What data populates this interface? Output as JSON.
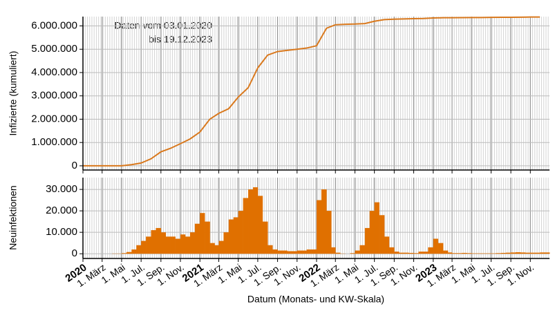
{
  "chart_data": [
    {
      "type": "line",
      "ylabel": "Infizierte (kumuliert)",
      "annotation": [
        "Daten vom 03.01.2020",
        "bis 19.12.2023"
      ],
      "xlim": [
        "2020-01-01",
        "2023-12-31"
      ],
      "ylim": [
        -180000,
        6400000
      ],
      "yticks": [
        0,
        {
          "value": 1000000,
          "label": "1.000.000"
        },
        {
          "value": 2000000,
          "label": "2.000.000"
        },
        {
          "value": 3000000,
          "label": "3.000.000"
        },
        {
          "value": 4000000,
          "label": "4.000.000"
        },
        {
          "value": 5000000,
          "label": "5.000.000"
        },
        {
          "value": 6000000,
          "label": "6.000.000"
        }
      ],
      "grid": true,
      "x": [
        "2020-01-01",
        "2020-02-01",
        "2020-03-01",
        "2020-04-01",
        "2020-05-01",
        "2020-06-01",
        "2020-07-01",
        "2020-08-01",
        "2020-09-01",
        "2020-10-01",
        "2020-11-01",
        "2020-12-01",
        "2021-01-01",
        "2021-02-01",
        "2021-03-01",
        "2021-04-01",
        "2021-05-01",
        "2021-06-01",
        "2021-07-01",
        "2021-08-01",
        "2021-09-01",
        "2021-10-01",
        "2021-11-01",
        "2021-12-01",
        "2022-01-01",
        "2022-02-01",
        "2022-03-01",
        "2022-04-01",
        "2022-05-01",
        "2022-06-01",
        "2022-07-01",
        "2022-08-01",
        "2022-09-01",
        "2022-10-01",
        "2022-11-01",
        "2022-12-01",
        "2023-01-01",
        "2023-02-01",
        "2023-03-01",
        "2023-04-01",
        "2023-05-01",
        "2023-06-01",
        "2023-07-01",
        "2023-08-01",
        "2023-09-01",
        "2023-10-01",
        "2023-11-01",
        "2023-12-01"
      ],
      "series": [
        {
          "name": "Infizierte (kumuliert)",
          "color": "#d9781c",
          "values": [
            0,
            0,
            0,
            0,
            0,
            50000,
            120000,
            300000,
            600000,
            750000,
            950000,
            1150000,
            1450000,
            2000000,
            2250000,
            2450000,
            2950000,
            3350000,
            4200000,
            4750000,
            4900000,
            4950000,
            5000000,
            5050000,
            5150000,
            5900000,
            6050000,
            6070000,
            6080000,
            6100000,
            6200000,
            6270000,
            6290000,
            6300000,
            6310000,
            6320000,
            6340000,
            6350000,
            6350000,
            6355000,
            6360000,
            6360000,
            6365000,
            6370000,
            6370000,
            6375000,
            6380000,
            6380000
          ]
        }
      ]
    },
    {
      "type": "bar",
      "ylabel": "Neuinfektionen",
      "xlabel": "Datum (Monats- und KW-Skala)",
      "xlim": [
        "2020-01-01",
        "2023-12-31"
      ],
      "ylim": [
        -2200,
        35500
      ],
      "yticks": [
        0,
        {
          "value": 10000,
          "label": "10.000"
        },
        {
          "value": 20000,
          "label": "20.000"
        },
        {
          "value": 30000,
          "label": "30.000"
        }
      ],
      "xticks": [
        {
          "value": "2020-01-01",
          "label": "2020"
        },
        {
          "value": "2020-03-01",
          "label": "1. März"
        },
        {
          "value": "2020-05-01",
          "label": "1. Mai"
        },
        {
          "value": "2020-07-01",
          "label": "1. Jul."
        },
        {
          "value": "2020-09-01",
          "label": "1. Sep."
        },
        {
          "value": "2020-11-01",
          "label": "1. Nov."
        },
        {
          "value": "2021-01-01",
          "label": "2021"
        },
        {
          "value": "2021-03-01",
          "label": "1. März"
        },
        {
          "value": "2021-05-01",
          "label": "1. Mai"
        },
        {
          "value": "2021-07-01",
          "label": "1. Jul."
        },
        {
          "value": "2021-09-01",
          "label": "1. Sep."
        },
        {
          "value": "2021-11-01",
          "label": "1. Nov."
        },
        {
          "value": "2022-01-01",
          "label": "2022"
        },
        {
          "value": "2022-03-01",
          "label": "1. März"
        },
        {
          "value": "2022-05-01",
          "label": "1. Mai"
        },
        {
          "value": "2022-07-01",
          "label": "1. Jul."
        },
        {
          "value": "2022-09-01",
          "label": "1. Sep."
        },
        {
          "value": "2022-11-01",
          "label": "1. Nov."
        },
        {
          "value": "2023-01-01",
          "label": "2023"
        },
        {
          "value": "2023-03-01",
          "label": "1. März"
        },
        {
          "value": "2023-05-01",
          "label": "1. Mai"
        },
        {
          "value": "2023-07-01",
          "label": "1. Jul."
        },
        {
          "value": "2023-09-01",
          "label": "1. Sep."
        },
        {
          "value": "2023-11-01",
          "label": "1. Nov."
        }
      ],
      "grid": true,
      "color": "#e07000",
      "x": [
        "2020-01-01",
        "2020-01-16",
        "2020-02-01",
        "2020-02-16",
        "2020-03-01",
        "2020-03-16",
        "2020-04-01",
        "2020-04-16",
        "2020-05-01",
        "2020-05-16",
        "2020-06-01",
        "2020-06-16",
        "2020-07-01",
        "2020-07-16",
        "2020-08-01",
        "2020-08-16",
        "2020-09-01",
        "2020-09-16",
        "2020-10-01",
        "2020-10-16",
        "2020-11-01",
        "2020-11-16",
        "2020-12-01",
        "2020-12-16",
        "2021-01-01",
        "2021-01-16",
        "2021-02-01",
        "2021-02-16",
        "2021-03-01",
        "2021-03-16",
        "2021-04-01",
        "2021-04-16",
        "2021-05-01",
        "2021-05-16",
        "2021-06-01",
        "2021-06-16",
        "2021-07-01",
        "2021-07-16",
        "2021-08-01",
        "2021-08-16",
        "2021-09-01",
        "2021-09-16",
        "2021-10-01",
        "2021-10-16",
        "2021-11-01",
        "2021-11-16",
        "2021-12-01",
        "2021-12-16",
        "2022-01-01",
        "2022-01-16",
        "2022-02-01",
        "2022-02-16",
        "2022-03-01",
        "2022-03-16",
        "2022-04-01",
        "2022-04-16",
        "2022-05-01",
        "2022-05-16",
        "2022-06-01",
        "2022-06-16",
        "2022-07-01",
        "2022-07-16",
        "2022-08-01",
        "2022-08-16",
        "2022-09-01",
        "2022-09-16",
        "2022-10-01",
        "2022-10-16",
        "2022-11-01",
        "2022-11-16",
        "2022-12-01",
        "2022-12-16",
        "2023-01-01",
        "2023-01-16",
        "2023-02-01",
        "2023-02-16",
        "2023-03-01",
        "2023-03-16",
        "2023-04-01",
        "2023-04-16",
        "2023-05-01",
        "2023-05-16",
        "2023-06-01",
        "2023-06-16",
        "2023-07-01",
        "2023-07-16",
        "2023-08-01",
        "2023-08-16",
        "2023-09-01",
        "2023-09-16",
        "2023-10-01",
        "2023-10-16",
        "2023-11-01",
        "2023-11-16",
        "2023-12-01",
        "2023-12-16"
      ],
      "values": [
        0,
        0,
        0,
        0,
        0,
        0,
        100,
        100,
        300,
        800,
        2000,
        4000,
        6000,
        8000,
        11000,
        12000,
        10000,
        8000,
        8000,
        7000,
        9000,
        8000,
        10000,
        14000,
        19000,
        15000,
        5000,
        4000,
        6000,
        10000,
        16000,
        17000,
        20000,
        26000,
        30000,
        31000,
        27000,
        15000,
        4000,
        2000,
        1500,
        1500,
        1200,
        1200,
        1500,
        1500,
        2000,
        2000,
        25000,
        30000,
        20000,
        3000,
        500,
        100,
        0,
        300,
        1500,
        4000,
        12000,
        20000,
        24000,
        18000,
        8000,
        3000,
        1000,
        500,
        500,
        400,
        300,
        1000,
        1000,
        3000,
        7000,
        5000,
        1500,
        600,
        300,
        300,
        400,
        300,
        200,
        200,
        200,
        200,
        200,
        300,
        400,
        500,
        600,
        700,
        600,
        500,
        500,
        500,
        600,
        600
      ]
    }
  ]
}
